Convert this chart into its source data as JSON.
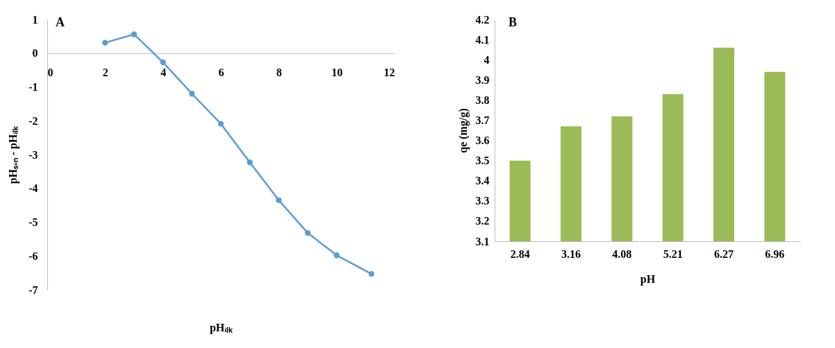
{
  "chart_data": [
    {
      "type": "line",
      "title": "A",
      "xlabel": "pHᵢₗₖ",
      "ylabel": "pHₛₒₙ - pHᵢₗₖ",
      "x": [
        2,
        3,
        4,
        5,
        6,
        7,
        8,
        9,
        10,
        11.2
      ],
      "series": [
        {
          "color": "#5b9bd5",
          "values": [
            0.31,
            0.56,
            -0.27,
            -1.2,
            -2.09,
            -3.23,
            -4.35,
            -5.32,
            -5.98,
            -6.53
          ]
        }
      ],
      "xlim": [
        0,
        12
      ],
      "xticks": [
        0,
        2,
        4,
        6,
        8,
        10,
        12
      ],
      "ylim": [
        -7,
        1
      ],
      "yticks": [
        -7,
        -6,
        -5,
        -4,
        -3,
        -2,
        -1,
        0,
        1
      ],
      "marker": "circle",
      "grid": false,
      "legend": false
    },
    {
      "type": "bar",
      "title": "B",
      "xlabel": "pH",
      "ylabel": "qe (mg/g)",
      "categories": [
        "2.84",
        "3.16",
        "4.08",
        "5.21",
        "6.27",
        "6.96"
      ],
      "series": [
        {
          "color": "#9bbb59",
          "values": [
            3.5,
            3.67,
            3.72,
            3.83,
            4.06,
            3.94
          ]
        }
      ],
      "ylim": [
        3.1,
        4.2
      ],
      "yticks": [
        3.1,
        3.2,
        3.3,
        3.4,
        3.5,
        3.6,
        3.7,
        3.8,
        3.9,
        4,
        4.1,
        4.2
      ],
      "grid": false,
      "legend": false
    }
  ]
}
